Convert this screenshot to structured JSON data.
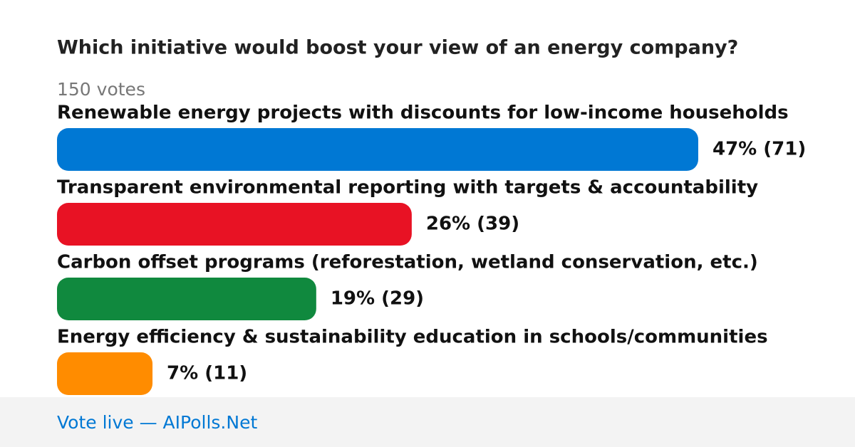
{
  "chart_data": {
    "type": "bar",
    "title": "Which initiative would boost your view of an energy company?",
    "subtitle": "150 votes",
    "categories": [
      "Renewable energy projects with discounts for low-income households",
      "Transparent environmental reporting with targets & accountability",
      "Carbon offset programs (reforestation, wetland conservation, etc.)",
      "Energy efficiency & sustainability education in schools/communities"
    ],
    "values": [
      47,
      26,
      19,
      7
    ],
    "value_labels": [
      "47% (71)",
      "26% (39)",
      "19% (29)",
      "7% (11)"
    ],
    "colors": [
      "#0078d4",
      "#e81224",
      "#10893e",
      "#ff8c00"
    ]
  },
  "footer": {
    "text": "Vote live — AIPolls.Net"
  }
}
